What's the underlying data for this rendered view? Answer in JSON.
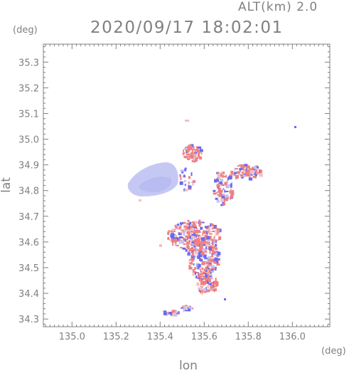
{
  "header": {
    "altitude_label": "ALT(km)  2.0",
    "timestamp": "2020/09/17 18:02:01"
  },
  "axes": {
    "x_unit": "(deg)",
    "y_unit": "(deg)",
    "x_label": "lon",
    "y_label": "lat",
    "x_range": [
      134.87,
      136.17
    ],
    "y_range": [
      34.27,
      35.37
    ],
    "x_ticks": [
      "135.0",
      "135.2",
      "135.4",
      "135.6",
      "135.8",
      "136.0"
    ],
    "y_ticks": [
      "34.3",
      "34.4",
      "34.5",
      "34.6",
      "34.7",
      "34.8",
      "34.9",
      "35.0",
      "35.1",
      "35.2",
      "35.3"
    ]
  },
  "colors": {
    "frame": "#808080",
    "positive": "#f08080",
    "negative": "#6a6af0",
    "weak": "#c8c8f0"
  }
}
